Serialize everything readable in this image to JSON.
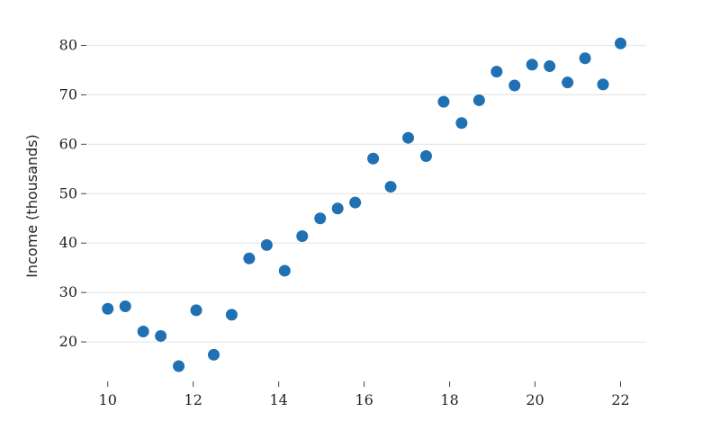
{
  "chart_data": {
    "type": "scatter",
    "title": "",
    "xlabel": "",
    "ylabel": "Income (thousands)",
    "xlim": [
      9.5,
      22.6
    ],
    "ylim": [
      12,
      83
    ],
    "x_ticks": [
      10,
      12,
      14,
      16,
      18,
      20,
      22
    ],
    "y_ticks": [
      20,
      30,
      40,
      50,
      60,
      70,
      80
    ],
    "grid": "horizontal",
    "point_color": "#2070b4",
    "series": [
      {
        "points": [
          {
            "x": 10.0,
            "y": 26.7
          },
          {
            "x": 10.41,
            "y": 27.2
          },
          {
            "x": 10.83,
            "y": 22.1
          },
          {
            "x": 11.24,
            "y": 21.2
          },
          {
            "x": 11.66,
            "y": 15.1
          },
          {
            "x": 12.07,
            "y": 26.4
          },
          {
            "x": 12.48,
            "y": 17.4
          },
          {
            "x": 12.9,
            "y": 25.5
          },
          {
            "x": 13.31,
            "y": 36.9
          },
          {
            "x": 13.72,
            "y": 39.6
          },
          {
            "x": 14.14,
            "y": 34.4
          },
          {
            "x": 14.55,
            "y": 41.4
          },
          {
            "x": 14.97,
            "y": 45.0
          },
          {
            "x": 15.38,
            "y": 47.0
          },
          {
            "x": 15.79,
            "y": 48.2
          },
          {
            "x": 16.21,
            "y": 57.1
          },
          {
            "x": 16.62,
            "y": 51.4
          },
          {
            "x": 17.03,
            "y": 61.3
          },
          {
            "x": 17.45,
            "y": 57.6
          },
          {
            "x": 17.86,
            "y": 68.6
          },
          {
            "x": 18.28,
            "y": 64.3
          },
          {
            "x": 18.69,
            "y": 68.9
          },
          {
            "x": 19.1,
            "y": 74.7
          },
          {
            "x": 19.52,
            "y": 71.9
          },
          {
            "x": 19.93,
            "y": 76.1
          },
          {
            "x": 20.34,
            "y": 75.8
          },
          {
            "x": 20.76,
            "y": 72.5
          },
          {
            "x": 21.17,
            "y": 77.4
          },
          {
            "x": 21.59,
            "y": 72.1
          },
          {
            "x": 22.0,
            "y": 80.4
          }
        ]
      }
    ]
  }
}
